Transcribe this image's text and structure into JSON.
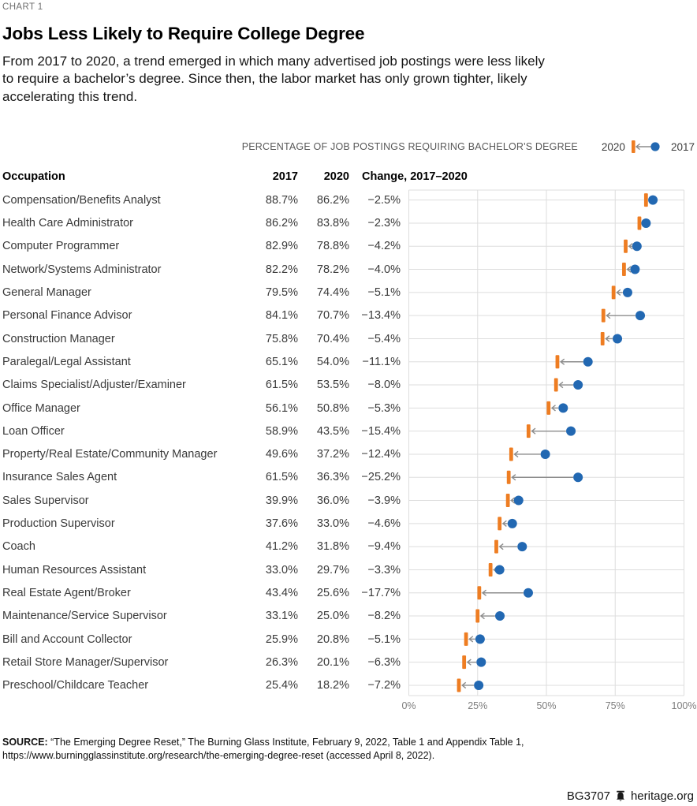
{
  "kicker": "CHART 1",
  "title": "Jobs Less Likely to Require College Degree",
  "subtitle_lines": [
    "From 2017 to 2020, a trend emerged in which many advertised job postings were less likely",
    "to require a bachelor’s degree. Since then, the labor market has only grown tighter, likely",
    "accelerating this trend."
  ],
  "legend": {
    "label": "PERCENTAGE OF JOB POSTINGS REQUIRING BACHELOR'S DEGREE",
    "marker_left_year": "2020",
    "marker_right_year": "2017"
  },
  "table": {
    "headers": {
      "occupation": "Occupation",
      "y2017": "2017",
      "y2020": "2020",
      "change": "Change, 2017–2020"
    }
  },
  "chart_data": {
    "type": "dumbbell",
    "title": "Percentage of job postings requiring bachelor's degree, 2017 vs 2020",
    "categories": [
      "Compensation/Benefits Analyst",
      "Health Care Administrator",
      "Computer Programmer",
      "Network/Systems Administrator",
      "General Manager",
      "Personal Finance Advisor",
      "Construction Manager",
      "Paralegal/Legal Assistant",
      "Claims Specialist/Adjuster/Examiner",
      "Office Manager",
      "Loan Officer",
      "Property/Real Estate/Community Manager",
      "Insurance Sales Agent",
      "Sales Supervisor",
      "Production Supervisor",
      "Coach",
      "Human Resources Assistant",
      "Real Estate Agent/Broker",
      "Maintenance/Service Supervisor",
      "Bill and Account Collector",
      "Retail Store Manager/Supervisor",
      "Preschool/Childcare Teacher"
    ],
    "series": [
      {
        "name": "2017",
        "values": [
          88.7,
          86.2,
          82.9,
          82.2,
          79.5,
          84.1,
          75.8,
          65.1,
          61.5,
          56.1,
          58.9,
          49.6,
          61.5,
          39.9,
          37.6,
          41.2,
          33.0,
          43.4,
          33.1,
          25.9,
          26.3,
          25.4
        ]
      },
      {
        "name": "2020",
        "values": [
          86.2,
          83.8,
          78.8,
          78.2,
          74.4,
          70.7,
          70.4,
          54.0,
          53.5,
          50.8,
          43.5,
          37.2,
          36.3,
          36.0,
          33.0,
          31.8,
          29.7,
          25.6,
          25.0,
          20.8,
          20.1,
          18.2
        ]
      }
    ],
    "changes": [
      -2.5,
      -2.3,
      -4.2,
      -4.0,
      -5.1,
      -13.4,
      -5.4,
      -11.1,
      -8.0,
      -5.3,
      -15.4,
      -12.4,
      -25.2,
      -3.9,
      -4.6,
      -9.4,
      -3.3,
      -17.7,
      -8.2,
      -5.1,
      -6.3,
      -7.2
    ],
    "x_axis": {
      "min": 0,
      "max": 100,
      "ticks": [
        "0%",
        "25%",
        "50%",
        "75%",
        "100%"
      ],
      "tick_values": [
        0,
        25,
        50,
        75,
        100
      ]
    },
    "grid": "vertical ticks + horizontal line through each row center",
    "legend_position": "top-right",
    "colors": {
      "dot_2017": "#2268B2",
      "bar_2020": "#EE7D22",
      "arrow": "#8C8C8C",
      "gridline": "#DDDDDD"
    }
  },
  "source": {
    "label": "SOURCE:",
    "lines": [
      "“The Emerging Degree Reset,” The Burning Glass Institute, February 9, 2022, Table 1 and Appendix Table 1,",
      "https://www.burningglassinstitute.org/research/the-emerging-degree-reset (accessed April 8, 2022)."
    ]
  },
  "footer": {
    "id": "BG3707",
    "site": "heritage.org"
  }
}
